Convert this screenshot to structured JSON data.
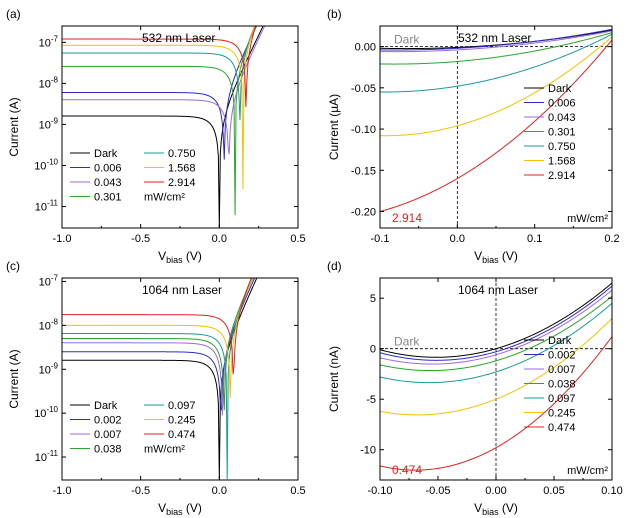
{
  "chart_data": [
    {
      "id": "a",
      "type": "line",
      "panel_label": "(a)",
      "title": "532 nm Laser",
      "xlabel_main": "V",
      "xlabel_sub": "bias",
      "xlabel_unit": " (V)",
      "ylabel": "Current (A)",
      "yscale": "log",
      "xlim": [
        -1.0,
        0.5
      ],
      "ylim": [
        3e-12,
        2.5e-07
      ],
      "xticks": [
        -1.0,
        -0.5,
        0.0,
        0.5
      ],
      "xtick_labels": [
        "-1.0",
        "-0.5",
        "0.0",
        "0.5"
      ],
      "yticks": [
        1e-11,
        1e-10,
        1e-09,
        1e-08,
        1e-07
      ],
      "ytick_labels": [
        {
          "base": "10",
          "exp": "-11"
        },
        {
          "base": "10",
          "exp": "-10"
        },
        {
          "base": "10",
          "exp": "-9"
        },
        {
          "base": "10",
          "exp": "-8"
        },
        {
          "base": "10",
          "exp": "-7"
        }
      ],
      "legend_unit": "mW/cm²",
      "series": [
        {
          "name": "Dark",
          "color": "#000000",
          "plateau": 1.6e-09,
          "v0": 0.0
        },
        {
          "name": "0.006",
          "color": "#2b2bcc",
          "plateau": 6e-09,
          "v0": 0.03
        },
        {
          "name": "0.043",
          "color": "#9a6ae0",
          "plateau": 4e-09,
          "v0": 0.06
        },
        {
          "name": "0.301",
          "color": "#2aa52a",
          "plateau": 2.6e-08,
          "v0": 0.1
        },
        {
          "name": "0.750",
          "color": "#1a9a9a",
          "plateau": 5.5e-08,
          "v0": 0.13
        },
        {
          "name": "1.568",
          "color": "#f2c200",
          "plateau": 8.5e-08,
          "v0": 0.15
        },
        {
          "name": "2.914",
          "color": "#e02020",
          "plateau": 1.2e-07,
          "v0": 0.17
        }
      ]
    },
    {
      "id": "b",
      "type": "line",
      "panel_label": "(b)",
      "title": "532 nm Laser",
      "xlabel_main": "V",
      "xlabel_sub": "bias",
      "xlabel_unit": " (V)",
      "ylabel": "Current (µA)",
      "yscale": "linear",
      "xlim": [
        -0.1,
        0.2
      ],
      "ylim": [
        -0.22,
        0.025
      ],
      "xticks": [
        -0.1,
        0.0,
        0.1,
        0.2
      ],
      "xtick_labels": [
        "-0.1",
        "0.0",
        "0.1",
        "0.2"
      ],
      "yticks": [
        0.0,
        -0.05,
        -0.1,
        -0.15,
        -0.2
      ],
      "ytick_labels": [
        "0.00",
        "-0.05",
        "-0.10",
        "-0.15",
        "-0.20"
      ],
      "legend_unit": "mW/cm²",
      "dark_annotation": "Dark",
      "power_annotation": "2.914",
      "series": [
        {
          "name": "Dark",
          "color": "#000000",
          "y_at_xmin": -0.002,
          "y_at_x0": -0.001,
          "y_at_xmax": 0.02
        },
        {
          "name": "0.006",
          "color": "#2b2bcc",
          "y_at_xmin": -0.004,
          "y_at_x0": -0.002,
          "y_at_xmax": 0.021
        },
        {
          "name": "0.043",
          "color": "#9a6ae0",
          "y_at_xmin": -0.006,
          "y_at_x0": -0.004,
          "y_at_xmax": 0.019
        },
        {
          "name": "0.301",
          "color": "#2aa52a",
          "y_at_xmin": -0.021,
          "y_at_x0": -0.018,
          "y_at_xmax": 0.017
        },
        {
          "name": "0.750",
          "color": "#1a9a9a",
          "y_at_xmin": -0.055,
          "y_at_x0": -0.048,
          "y_at_xmax": 0.015
        },
        {
          "name": "1.568",
          "color": "#f2c200",
          "y_at_xmin": -0.108,
          "y_at_x0": -0.096,
          "y_at_xmax": 0.012
        },
        {
          "name": "2.914",
          "color": "#e02020",
          "y_at_xmin": -0.2,
          "y_at_x0": -0.16,
          "y_at_xmax": 0.008
        }
      ]
    },
    {
      "id": "c",
      "type": "line",
      "panel_label": "(c)",
      "title": "1064 nm Laser",
      "xlabel_main": "V",
      "xlabel_sub": "bias",
      "xlabel_unit": " (V)",
      "ylabel": "Current (A)",
      "yscale": "log",
      "xlim": [
        -1.0,
        0.5
      ],
      "ylim": [
        3e-12,
        1.2e-07
      ],
      "xticks": [
        -1.0,
        -0.5,
        0.0,
        0.5
      ],
      "xtick_labels": [
        "-1.0",
        "-0.5",
        "0.0",
        "0.5"
      ],
      "yticks": [
        1e-11,
        1e-10,
        1e-09,
        1e-08,
        1e-07
      ],
      "ytick_labels": [
        {
          "base": "10",
          "exp": "-11"
        },
        {
          "base": "10",
          "exp": "-10"
        },
        {
          "base": "10",
          "exp": "-9"
        },
        {
          "base": "10",
          "exp": "-8"
        },
        {
          "base": "10",
          "exp": "-7"
        }
      ],
      "legend_unit": "mW/cm²",
      "series": [
        {
          "name": "Dark",
          "color": "#000000",
          "plateau": 1.6e-09,
          "v0": 0.0
        },
        {
          "name": "0.002",
          "color": "#2b2bcc",
          "plateau": 2.5e-09,
          "v0": 0.01
        },
        {
          "name": "0.007",
          "color": "#9a6ae0",
          "plateau": 4e-09,
          "v0": 0.02
        },
        {
          "name": "0.038",
          "color": "#2aa52a",
          "plateau": 5e-09,
          "v0": 0.03
        },
        {
          "name": "0.097",
          "color": "#1a9a9a",
          "plateau": 6.5e-09,
          "v0": 0.05
        },
        {
          "name": "0.245",
          "color": "#f2c200",
          "plateau": 1e-08,
          "v0": 0.07
        },
        {
          "name": "0.474",
          "color": "#e02020",
          "plateau": 1.75e-08,
          "v0": 0.09
        }
      ]
    },
    {
      "id": "d",
      "type": "line",
      "panel_label": "(d)",
      "title": "1064 nm Laser",
      "xlabel_main": "V",
      "xlabel_sub": "bias",
      "xlabel_unit": " (V)",
      "ylabel": "Current (nA)",
      "yscale": "linear",
      "xlim": [
        -0.1,
        0.1
      ],
      "ylim": [
        -13,
        7
      ],
      "xticks": [
        -0.1,
        -0.05,
        0.0,
        0.05,
        0.1
      ],
      "xtick_labels": [
        "-0.10",
        "-0.05",
        "0.00",
        "0.05",
        "0.10"
      ],
      "yticks": [
        5,
        0,
        -5,
        -10
      ],
      "ytick_labels": [
        "5",
        "0",
        "-5",
        "-10"
      ],
      "legend_unit": "mW/cm²",
      "dark_annotation": "Dark",
      "power_annotation": "0.474",
      "series": [
        {
          "name": "Dark",
          "color": "#000000",
          "y_at_xmin": -0.1,
          "y_at_x0": 0.0,
          "y_at_xmax": 6.5
        },
        {
          "name": "0.002",
          "color": "#2b2bcc",
          "y_at_xmin": -0.4,
          "y_at_x0": -0.3,
          "y_at_xmax": 6.2
        },
        {
          "name": "0.007",
          "color": "#9a6ae0",
          "y_at_xmin": -0.9,
          "y_at_x0": -0.6,
          "y_at_xmax": 5.8
        },
        {
          "name": "0.038",
          "color": "#2aa52a",
          "y_at_xmin": -1.6,
          "y_at_x0": -1.2,
          "y_at_xmax": 5.2
        },
        {
          "name": "0.097",
          "color": "#1a9a9a",
          "y_at_xmin": -2.8,
          "y_at_x0": -2.3,
          "y_at_xmax": 4.5
        },
        {
          "name": "0.245",
          "color": "#f2c200",
          "y_at_xmin": -6.2,
          "y_at_x0": -5.0,
          "y_at_xmax": 3.0
        },
        {
          "name": "0.474",
          "color": "#e02020",
          "y_at_xmin": -11.6,
          "y_at_x0": -9.8,
          "y_at_xmax": 1.2
        }
      ]
    }
  ]
}
